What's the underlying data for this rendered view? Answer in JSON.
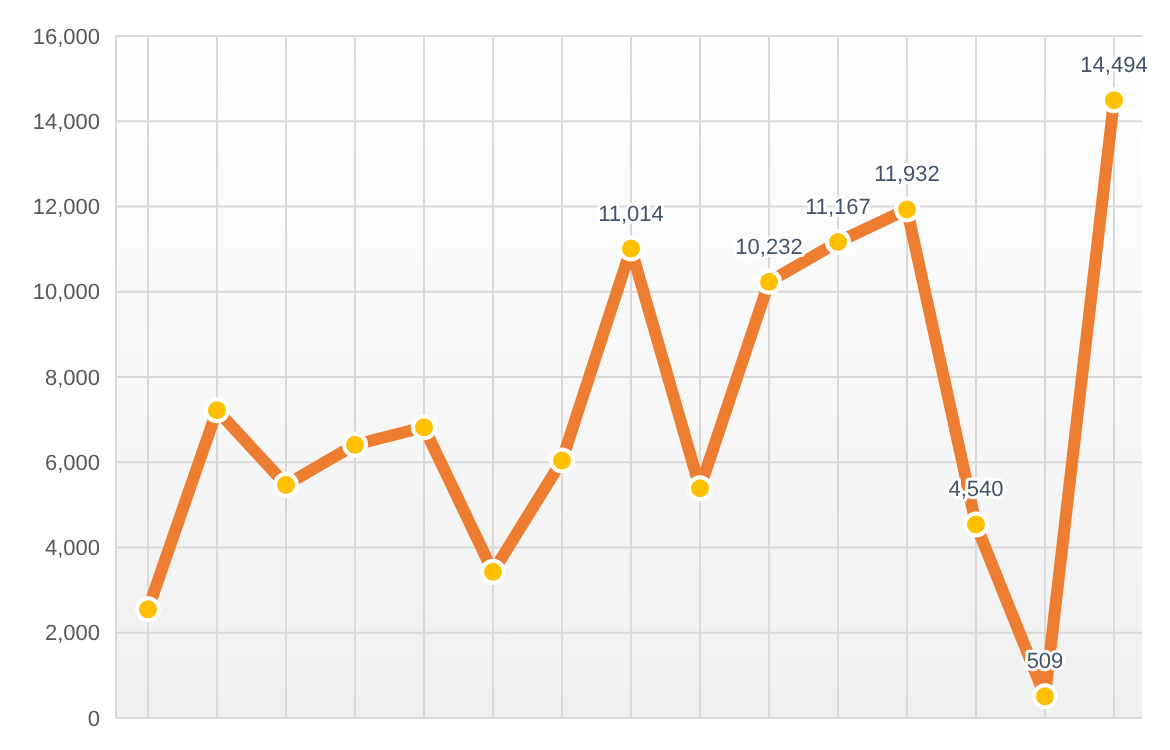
{
  "chart_data": {
    "type": "line",
    "categories": [
      null,
      null,
      null,
      null,
      null,
      null,
      null,
      null,
      null,
      null,
      null,
      null,
      null,
      null,
      null
    ],
    "series": [
      {
        "color": "#ed7d31",
        "values": [
          2550,
          7220,
          5470,
          6410,
          6820,
          3430,
          6040,
          11014,
          5390,
          10232,
          11167,
          11932,
          4540,
          509,
          14494
        ],
        "value_labels": [
          null,
          null,
          null,
          null,
          null,
          null,
          null,
          "11,014",
          null,
          "10,232",
          "11,167",
          "11,932",
          "4,540",
          "509",
          "14,494"
        ],
        "colors": [
          "#ffc000",
          "#ffc000",
          "#ffc000",
          "#ffc000",
          "#ffc000",
          "#ffc000",
          "#ffc000",
          "#ffc000",
          "#ffc000",
          "#ffc000",
          "#ffc000",
          "#ffc000",
          "#ffc000",
          "#ffc000",
          "#ffc000"
        ]
      }
    ],
    "marker": "circle",
    "ylim": [
      0,
      16000
    ],
    "yticks": [
      {
        "value": 0,
        "label": "0"
      },
      {
        "value": 2000,
        "label": "2,000"
      },
      {
        "value": 4000,
        "label": "4,000"
      },
      {
        "value": 6000,
        "label": "6,000"
      },
      {
        "value": 8000,
        "label": "8,000"
      },
      {
        "value": 10000,
        "label": "10,000"
      },
      {
        "value": 12000,
        "label": "12,000"
      },
      {
        "value": 14000,
        "label": "14,000"
      },
      {
        "value": 16000,
        "label": "16,000"
      }
    ],
    "grid": true
  }
}
